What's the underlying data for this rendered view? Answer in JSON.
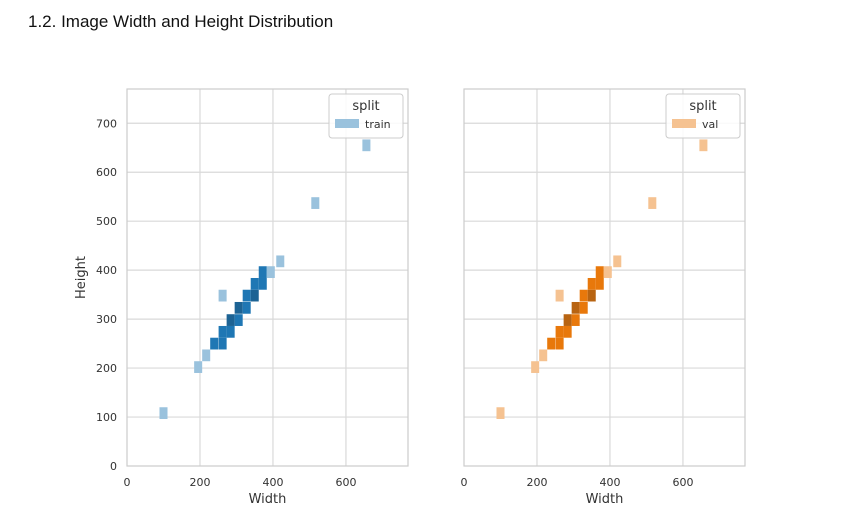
{
  "page": {
    "heading": "1.2. Image Width and Height Distribution"
  },
  "chart_data": [
    {
      "type": "heatmap",
      "title": "",
      "xlabel": "Width",
      "ylabel": "Height",
      "xlim": [
        0,
        770
      ],
      "ylim": [
        0,
        770
      ],
      "xticks": [
        0,
        200,
        400,
        600
      ],
      "yticks": [
        0,
        100,
        200,
        300,
        400,
        500,
        600,
        700
      ],
      "grid": true,
      "legend": {
        "title": "split",
        "entries": [
          "train"
        ],
        "position": "top-right"
      },
      "base_color": "#1f77b4",
      "bin_size": [
        22,
        24
      ],
      "bins": [
        {
          "x": 100,
          "y": 108,
          "density": 0.2
        },
        {
          "x": 195,
          "y": 202,
          "density": 0.2
        },
        {
          "x": 217,
          "y": 226,
          "density": 0.2
        },
        {
          "x": 239,
          "y": 250,
          "density": 0.6
        },
        {
          "x": 262,
          "y": 250,
          "density": 0.6
        },
        {
          "x": 262,
          "y": 274,
          "density": 0.6
        },
        {
          "x": 284,
          "y": 274,
          "density": 0.6
        },
        {
          "x": 262,
          "y": 348,
          "density": 0.2
        },
        {
          "x": 284,
          "y": 298,
          "density": 0.8
        },
        {
          "x": 306,
          "y": 298,
          "density": 0.6
        },
        {
          "x": 306,
          "y": 323,
          "density": 0.8
        },
        {
          "x": 328,
          "y": 323,
          "density": 0.6
        },
        {
          "x": 328,
          "y": 348,
          "density": 0.6
        },
        {
          "x": 350,
          "y": 348,
          "density": 0.8
        },
        {
          "x": 350,
          "y": 372,
          "density": 0.6
        },
        {
          "x": 372,
          "y": 372,
          "density": 0.6
        },
        {
          "x": 372,
          "y": 396,
          "density": 0.6
        },
        {
          "x": 394,
          "y": 396,
          "density": 0.2
        },
        {
          "x": 420,
          "y": 418,
          "density": 0.2
        },
        {
          "x": 516,
          "y": 537,
          "density": 0.2
        },
        {
          "x": 656,
          "y": 655,
          "density": 0.2
        }
      ]
    },
    {
      "type": "heatmap",
      "title": "",
      "xlabel": "Width",
      "ylabel": "",
      "xlim": [
        0,
        770
      ],
      "ylim": [
        0,
        770
      ],
      "xticks": [
        0,
        200,
        400,
        600
      ],
      "yticks": [],
      "grid": true,
      "legend": {
        "title": "split",
        "entries": [
          "val"
        ],
        "position": "top-right"
      },
      "base_color": "#e8780b",
      "bin_size": [
        22,
        24
      ],
      "bins": [
        {
          "x": 100,
          "y": 108,
          "density": 0.2
        },
        {
          "x": 195,
          "y": 202,
          "density": 0.2
        },
        {
          "x": 217,
          "y": 226,
          "density": 0.2
        },
        {
          "x": 239,
          "y": 250,
          "density": 0.6
        },
        {
          "x": 262,
          "y": 250,
          "density": 0.6
        },
        {
          "x": 262,
          "y": 274,
          "density": 0.6
        },
        {
          "x": 284,
          "y": 274,
          "density": 0.6
        },
        {
          "x": 262,
          "y": 348,
          "density": 0.2
        },
        {
          "x": 284,
          "y": 298,
          "density": 0.8
        },
        {
          "x": 306,
          "y": 298,
          "density": 0.6
        },
        {
          "x": 306,
          "y": 323,
          "density": 0.8
        },
        {
          "x": 328,
          "y": 323,
          "density": 0.6
        },
        {
          "x": 328,
          "y": 348,
          "density": 0.6
        },
        {
          "x": 350,
          "y": 348,
          "density": 0.8
        },
        {
          "x": 350,
          "y": 372,
          "density": 0.6
        },
        {
          "x": 372,
          "y": 372,
          "density": 0.6
        },
        {
          "x": 372,
          "y": 396,
          "density": 0.6
        },
        {
          "x": 394,
          "y": 396,
          "density": 0.2
        },
        {
          "x": 420,
          "y": 418,
          "density": 0.2
        },
        {
          "x": 516,
          "y": 537,
          "density": 0.2
        },
        {
          "x": 656,
          "y": 655,
          "density": 0.2
        }
      ]
    }
  ]
}
